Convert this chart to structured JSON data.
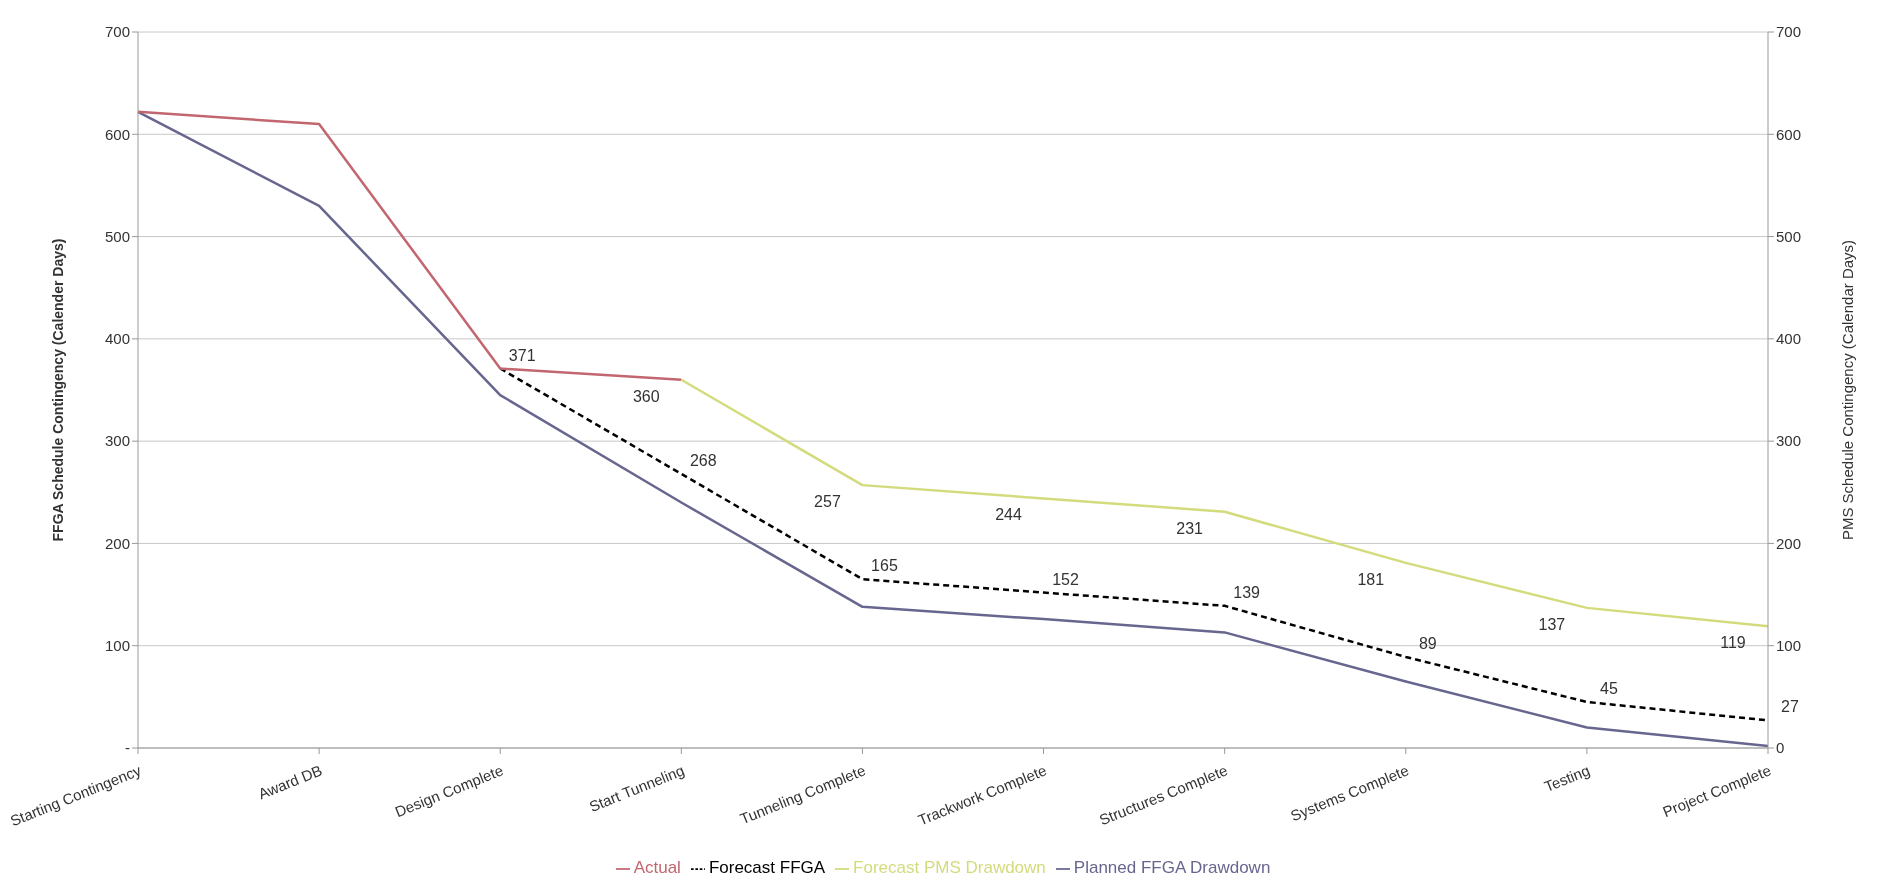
{
  "chart_data": {
    "type": "line",
    "ylabel": "FFGA Schedule Contingency (Calender Days)",
    "y2label": "PMS Schedule Contingency (Calendar Days)",
    "categories": [
      "Starting Contingency",
      "Award DB",
      "Design Complete",
      "Start Tunneling",
      "Tunneling Complete",
      "Trackwork Complete",
      "Structures Complete",
      "Systems Complete",
      "Testing",
      "Project Complete"
    ],
    "series": [
      {
        "name": "Planned FFGA Drawdown",
        "color": "#66668f",
        "values": [
          622,
          530,
          345,
          240,
          138,
          126,
          113,
          65,
          20,
          2
        ]
      },
      {
        "name": "Forecast FFGA",
        "color": "#000000",
        "line_style": "dashed",
        "values": [
          null,
          null,
          371,
          268,
          165,
          152,
          139,
          89,
          45,
          27
        ],
        "value_labels": [
          null,
          null,
          "371",
          "268",
          "165",
          "152",
          "139",
          "89",
          "45",
          "27"
        ]
      },
      {
        "name": "Actual",
        "color": "#c2666f",
        "values": [
          622,
          610,
          371,
          360,
          null,
          null,
          null,
          null,
          null,
          null
        ]
      },
      {
        "name": "Forecast PMS Drawdown",
        "color": "#d3db7c",
        "axis": "y2",
        "values": [
          null,
          null,
          null,
          360,
          257,
          244,
          231,
          181,
          137,
          119
        ],
        "value_labels": [
          null,
          null,
          null,
          "360",
          "257",
          "244",
          "231",
          "181",
          "137",
          "119"
        ]
      }
    ],
    "ylim": [
      0,
      700
    ],
    "yticks": [
      {
        "value": 0,
        "label": "-"
      },
      100,
      200,
      300,
      400,
      500,
      600,
      700
    ],
    "y2lim": [
      0,
      700
    ],
    "y2ticks": [
      0,
      100,
      200,
      300,
      400,
      500,
      600,
      700
    ],
    "grid": "y",
    "legend": "bottom",
    "marker": "none"
  }
}
